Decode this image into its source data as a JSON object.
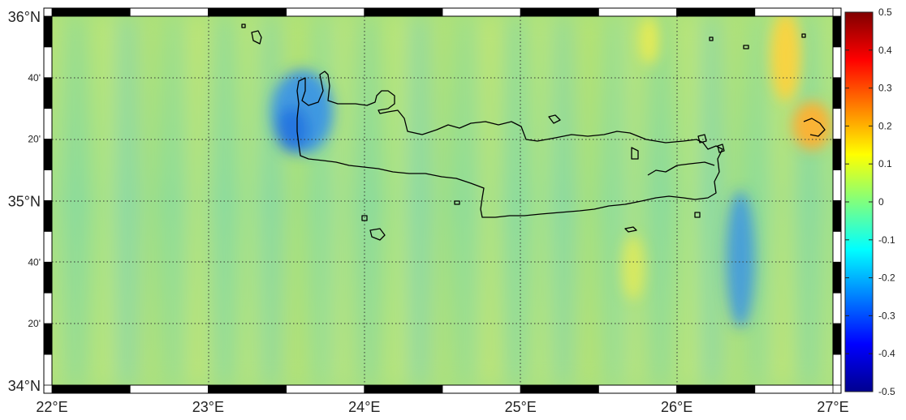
{
  "map": {
    "projection": "equirectangular",
    "lon_range": [
      22,
      27
    ],
    "lat_range": [
      34,
      36
    ],
    "lon_ticks": [
      {
        "value": 22,
        "label": "22°E"
      },
      {
        "value": 23,
        "label": "23°E"
      },
      {
        "value": 24,
        "label": "24°E"
      },
      {
        "value": 25,
        "label": "25°E"
      },
      {
        "value": 26,
        "label": "26°E"
      },
      {
        "value": 27,
        "label": "27°E"
      }
    ],
    "lat_ticks": [
      {
        "value": 36,
        "label": "36°N"
      },
      {
        "value": 35.6667,
        "label": "40'"
      },
      {
        "value": 35.3333,
        "label": "20'"
      },
      {
        "value": 35,
        "label": "35°N"
      },
      {
        "value": 34.6667,
        "label": "40'"
      },
      {
        "value": 34.3333,
        "label": "20'"
      },
      {
        "value": 34,
        "label": "34°N"
      }
    ],
    "gridlines": "dotted",
    "frame": "black-white-checkered",
    "field_anomalies": [
      {
        "region": "northwest Crete coast",
        "lon": 23.6,
        "lat": 35.55,
        "value": -0.15
      },
      {
        "region": "east of Crete",
        "lon": 26.4,
        "lat": 34.8,
        "value": -0.15
      },
      {
        "region": "northeast corner",
        "lon": 26.75,
        "lat": 35.85,
        "value": 0.15
      },
      {
        "region": "far east near 27E",
        "lon": 26.85,
        "lat": 35.45,
        "value": 0.2
      }
    ],
    "coastline": "Crete and small islands"
  },
  "colorbar": {
    "colormap": "jet",
    "range": [
      -0.5,
      0.5
    ],
    "ticks": [
      {
        "value": 0.5,
        "label": "0.5"
      },
      {
        "value": 0.4,
        "label": "0.4"
      },
      {
        "value": 0.3,
        "label": "0.3"
      },
      {
        "value": 0.2,
        "label": "0.2"
      },
      {
        "value": 0.1,
        "label": "0.1"
      },
      {
        "value": 0,
        "label": "0"
      },
      {
        "value": -0.1,
        "label": "-0.1"
      },
      {
        "value": -0.2,
        "label": "-0.2"
      },
      {
        "value": -0.3,
        "label": "-0.3"
      },
      {
        "value": -0.4,
        "label": "-0.4"
      },
      {
        "value": -0.5,
        "label": "-0.5"
      }
    ]
  }
}
